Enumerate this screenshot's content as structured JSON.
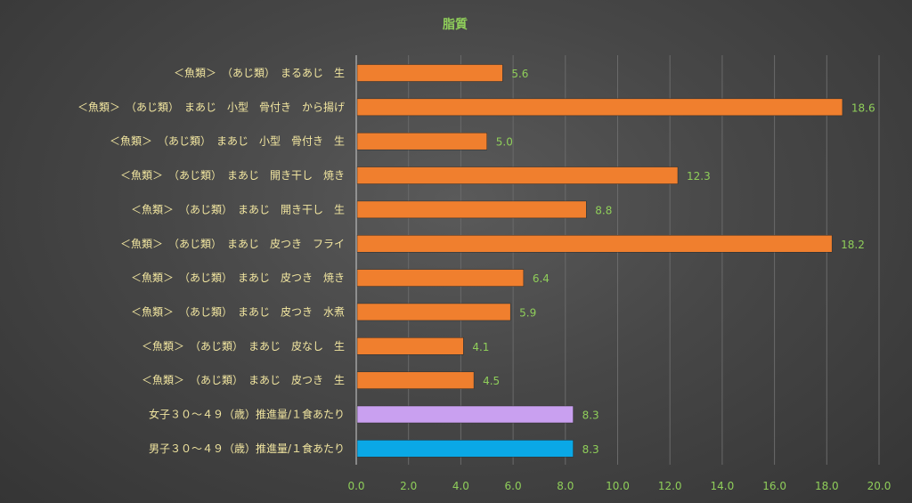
{
  "chart_data": {
    "type": "bar",
    "orientation": "horizontal",
    "title": "脂質",
    "xlim": [
      0,
      20
    ],
    "x_ticks": [
      "0.0",
      "2.0",
      "4.0",
      "6.0",
      "8.0",
      "10.0",
      "12.0",
      "14.0",
      "16.0",
      "18.0",
      "20.0"
    ],
    "grid": true,
    "legend": "none",
    "categories": [
      "＜魚類＞　（あじ類）　まるあじ　生",
      "＜魚類＞　（あじ類）　まあじ　小型　骨付き　から揚げ",
      "＜魚類＞　（あじ類）　まあじ　小型　骨付き　生",
      "＜魚類＞　（あじ類）　まあじ　開き干し　焼き",
      "＜魚類＞　（あじ類）　まあじ　開き干し　生",
      "＜魚類＞　（あじ類）　まあじ　皮つき　フライ",
      "＜魚類＞　（あじ類）　まあじ　皮つき　焼き",
      "＜魚類＞　（あじ類）　まあじ　皮つき　水煮",
      "＜魚類＞　（あじ類）　まあじ　皮なし　生",
      "＜魚類＞　（あじ類）　まあじ　皮つき　生",
      "女子３０～４９（歳）推進量/１食あたり",
      "男子３０～４９（歳）推進量/１食あたり"
    ],
    "values": [
      5.6,
      18.6,
      5.0,
      12.3,
      8.8,
      18.2,
      6.4,
      5.9,
      4.1,
      4.5,
      8.3,
      8.3
    ],
    "value_labels": [
      "5.6",
      "18.6",
      "5.0",
      "12.3",
      "8.8",
      "18.2",
      "6.4",
      "5.9",
      "4.1",
      "4.5",
      "8.3",
      "8.3"
    ],
    "bar_colors": [
      "#f07f2e",
      "#f07f2e",
      "#f07f2e",
      "#f07f2e",
      "#f07f2e",
      "#f07f2e",
      "#f07f2e",
      "#f07f2e",
      "#f07f2e",
      "#f07f2e",
      "#c9a0f0",
      "#0aa8e6"
    ]
  }
}
